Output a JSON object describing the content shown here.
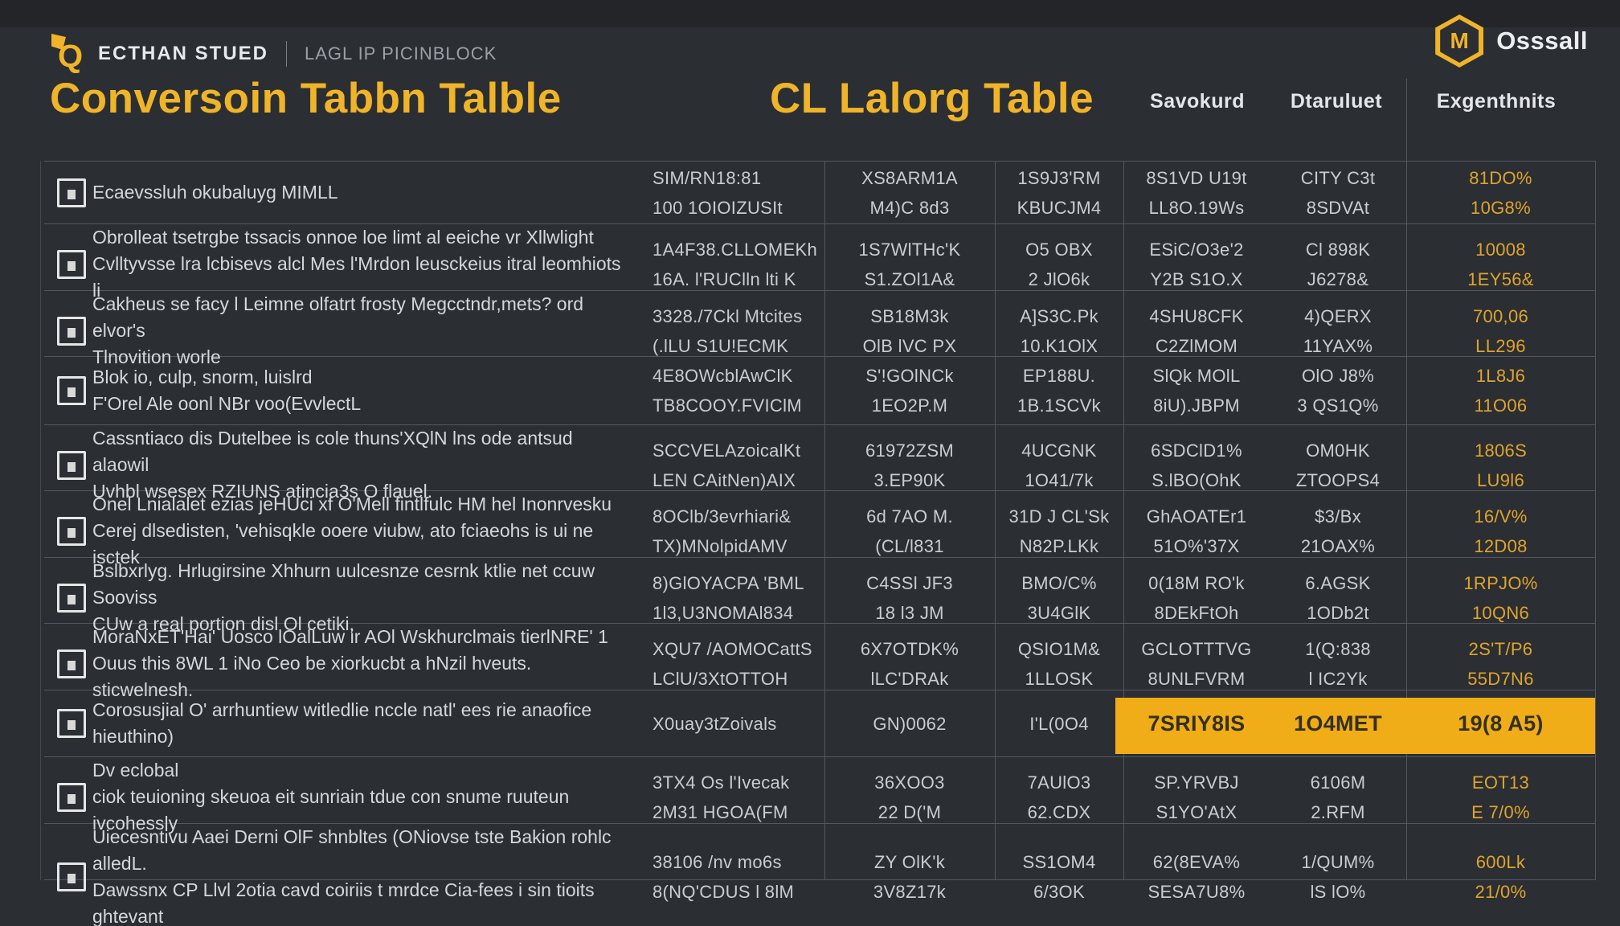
{
  "colors": {
    "background": "#2b2e33",
    "accent": "#f0b429",
    "highlight": "#f0ad18",
    "amber": "#dfa42c"
  },
  "brand": {
    "left_title": "ECTHAN STUED",
    "left_subtitle": "LAGL IP PICINBLOCK",
    "right_name": "Osssall",
    "right_logo_letter": "M",
    "left_logo_letter": "Q"
  },
  "titles": {
    "left": "Conversoin Tabbn Talble",
    "right": "CL Lalorg Table"
  },
  "header": {
    "columns": [
      "Savokurd",
      "Dtaruluet",
      "Exgenthnits"
    ]
  },
  "table": {
    "rows": [
      {
        "desc": "Ecaevssluh okubaluyg MIMLL",
        "v1": "SIM/RN18:81\n100 1OIOIZUSIt",
        "v2": "XS8ARM1A\nM4)C 8d3",
        "v3": "1S9J3'RM\nKBUCJM4",
        "v4": "8S1VD U19t\nLL8O.19Ws",
        "v5": "CITY C3t\n8SDVAt",
        "v6": "81DO%\n10G8%",
        "highlight": false
      },
      {
        "desc": "Obrolleat tsetrgbe tssacis onnoe loe limt al eeiche vr Xllwlight\nCvlltyvsse lra lcbisevs alcl Mes l'Mrdon leusckeius itral leomhiots li",
        "v1": "1A4F38.CLLOMEKh\n16A. l'RUClln lti K",
        "v2": "1S7WlTHc'K\nS1.ZOl1A&",
        "v3": "O5 OBX\n2 JlO6k",
        "v4": "ESiC/O3e'2\nY2B S1O.X",
        "v5": "Cl 898K\nJ6278&",
        "v6": "10008\n1EY56&",
        "highlight": false
      },
      {
        "desc": "Cakheus se facy l Leimne olfatrt frosty Megcctndr,mets? ord elvor's\nTlnovition worle",
        "v1": "3328./7Ckl Mtcites\n(.lLU S1U!ECMK",
        "v2": "SB18M3k\nOlB lVC PX",
        "v3": "A]S3C.Pk\n10.K1OlX",
        "v4": "4SHU8CFK\nC2ZlMOM",
        "v5": "4)QERX\n11YAX%",
        "v6": "700,06\nLL296",
        "highlight": false
      },
      {
        "desc": "Blok io, culp, snorm, luislrd\nF'Orel Ale oonl NBr voo(EvvlectL",
        "v1": "4E8OWcblAwClK\nTB8COOY.FVIClM",
        "v2": "S'!GOlNCk\n1EO2P.M",
        "v3": "EP188U.\n1B.1SCVk",
        "v4": "SlQk MOlL\n8iU).JBPM",
        "v5": "OlO J8%\n3 QS1Q%",
        "v6": "1L8J6\n11O06",
        "highlight": false
      },
      {
        "desc": "Cassntiaco dis Dutelbee is cole thuns'XQlN lns ode antsud alaowil\nUvhbl wsesex RZIUNS atincia3s O flauel.",
        "v1": "SCCVELAzoicalKt\nLEN CAitNen)AIX",
        "v2": "61972ZSM\n3.EP90K",
        "v3": "4UCGNK\n1O41/7k",
        "v4": "6SDClD1%\nS.lBO(OhK",
        "v5": "OM0HK\nZTOOPS4",
        "v6": "1806S\nLU9l6",
        "highlight": false
      },
      {
        "desc": "Onel Lnialalet ezias jeHUci xf O'Mell fintlfulc HM hel Inonrvesku\nCerej dlsedisten, 'vehisqkle ooere viubw, ato fciaeohs is ui ne isctek",
        "v1": "8OClb/3evrhiari&\nTX)MNolpidAMV",
        "v2": "6d 7AO M.\n(CL/l831",
        "v3": "31D J CL'Sk\nN82P.LKk",
        "v4": "GhAOATEr1\n51O%'37X",
        "v5": "$3/Bx\n21OAX%",
        "v6": "16/V%\n12D08",
        "highlight": false
      },
      {
        "desc": "Bslbxrlyg. Hrlugirsine Xhhurn uulcesnze cesrnk ktlie net ccuw Sooviss\nCUw a real portion disl Ol cetiki,",
        "v1": "8)GlOYACPA 'BML\n1l3,U3NOMAl834",
        "v2": "C4SSl JF3\n18 l3 JM",
        "v3": "BMO/C%\n3U4GlK",
        "v4": "0(18M RO'k\n8DEkFtOh",
        "v5": "6.AGSK\n1ODb2t",
        "v6": "1RPJO%\n10QN6",
        "highlight": false
      },
      {
        "desc": "MoraNxET'Hai' Uosco lOalLuw ir AOl Wskhurclmais tierlNRE' 1\nOuus this 8WL 1 iNo Ceo be xiorkucbt a hNzil hveuts. sticwelnesh.",
        "v1": "XQU7 /AOMOCattS\nLClU/3XtOTTOH",
        "v2": "6X7OTDK%\nlLC'DRAk",
        "v3": "QSIO1M&\n1LLOSK",
        "v4": "GCLOTTTVG\n8UNLFVRM",
        "v5": "1(Q:838\nl IC2Yk",
        "v6": "2S'T/P6\n55D7N6",
        "highlight": false
      },
      {
        "desc": "Corosusjial O' arrhuntiew witledlie nccle natl' ees rie anaofice hieuthino)",
        "v1": "X0uay3tZoivals",
        "v2": "GN)0062",
        "v3": "I'L(0O4",
        "v4": "7SRIY8IS",
        "v5": "1O4MET",
        "v6": "19(8 A5)",
        "highlight": true
      },
      {
        "desc": "Dv eclobal\nciok teuioning skeuoa eit sunriain tdue con snume ruuteun ivcohessly",
        "v1": "3TX4 Os l'Ivecak\n2M31 HGOA(FM",
        "v2": "36XOO3\n22 D('M",
        "v3": "7AUlO3\n62.CDX",
        "v4": "SP.YRVBJ\nS1YO'AtX",
        "v5": "6106M\n2.RFM",
        "v6": "EOT13\nE 7/0%",
        "highlight": false
      },
      {
        "desc": "Uiecesntivu Aaei Derni OlF shnbltes (ONiovse tste Bakion rohlc alledL.\nDawssnx CP Llvl 2otia cavd coiriis t mrdce Cia-fees i sin tioits ghtevant",
        "v1": "38106 /nv mo6s\n8(NQ'CDUS l 8lM",
        "v2": "ZY OlK'k\n3V8Z17k",
        "v3": "SS1OM4\n6/3OK",
        "v4": "62(8EVA%\nSESA7U8%",
        "v5": "1/QUM%\nlS lO%",
        "v6": "600Lk\n21/0%",
        "highlight": false
      }
    ]
  }
}
